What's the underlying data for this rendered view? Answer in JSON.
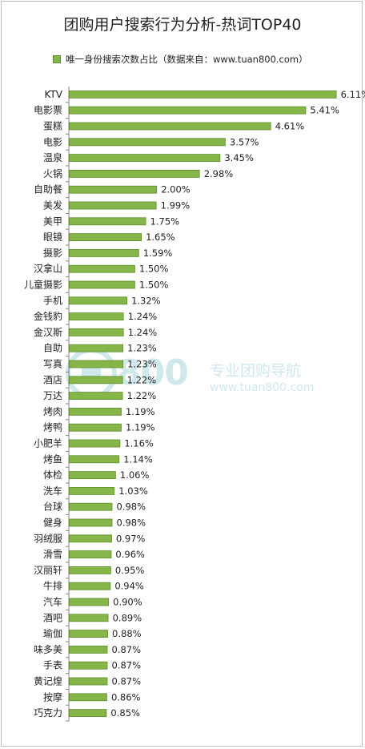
{
  "chart_data": {
    "type": "bar",
    "orientation": "horizontal",
    "title": "团购用户搜索行为分析-热词TOP40",
    "legend": "唯一身份搜索次数占比（数据来自：www.tuan800.com）",
    "legend_position": "top",
    "grid": false,
    "unit": "%",
    "categories": [
      "KTV",
      "电影票",
      "蛋糕",
      "电影",
      "温泉",
      "火锅",
      "自助餐",
      "美发",
      "美甲",
      "眼镜",
      "摄影",
      "汉拿山",
      "儿童摄影",
      "手机",
      "金钱豹",
      "金汉斯",
      "自助",
      "写真",
      "酒店",
      "万达",
      "烤肉",
      "烤鸭",
      "小肥羊",
      "烤鱼",
      "体检",
      "洗车",
      "台球",
      "健身",
      "羽绒服",
      "滑雪",
      "汉丽轩",
      "牛排",
      "汽车",
      "酒吧",
      "瑜伽",
      "味多美",
      "手表",
      "黄记煌",
      "按摩",
      "巧克力"
    ],
    "values": [
      6.11,
      5.41,
      4.61,
      3.57,
      3.45,
      2.98,
      2.0,
      1.99,
      1.75,
      1.65,
      1.59,
      1.5,
      1.5,
      1.32,
      1.24,
      1.24,
      1.23,
      1.23,
      1.22,
      1.22,
      1.19,
      1.19,
      1.16,
      1.14,
      1.06,
      1.03,
      0.98,
      0.98,
      0.97,
      0.96,
      0.95,
      0.94,
      0.9,
      0.89,
      0.88,
      0.87,
      0.87,
      0.87,
      0.86,
      0.85
    ],
    "value_labels": [
      "6.11%",
      "5.41%",
      "4.61%",
      "3.57%",
      "3.45%",
      "2.98%",
      "2.00%",
      "1.99%",
      "1.75%",
      "1.65%",
      "1.59%",
      "1.50%",
      "1.50%",
      "1.32%",
      "1.24%",
      "1.24%",
      "1.23%",
      "1.23%",
      "1.22%",
      "1.22%",
      "1.19%",
      "1.19%",
      "1.16%",
      "1.14%",
      "1.06%",
      "1.03%",
      "0.98%",
      "0.98%",
      "0.97%",
      "0.96%",
      "0.95%",
      "0.94%",
      "0.90%",
      "0.89%",
      "0.88%",
      "0.87%",
      "0.87%",
      "0.87%",
      "0.86%",
      "0.85%"
    ],
    "bar_color": "#86b64a",
    "bar_edge_color": "#5e8f2a"
  },
  "watermark": {
    "brand": "800",
    "name": "专业团购导航",
    "url": "www.tuan800.com",
    "color": "#2b9aa8"
  }
}
